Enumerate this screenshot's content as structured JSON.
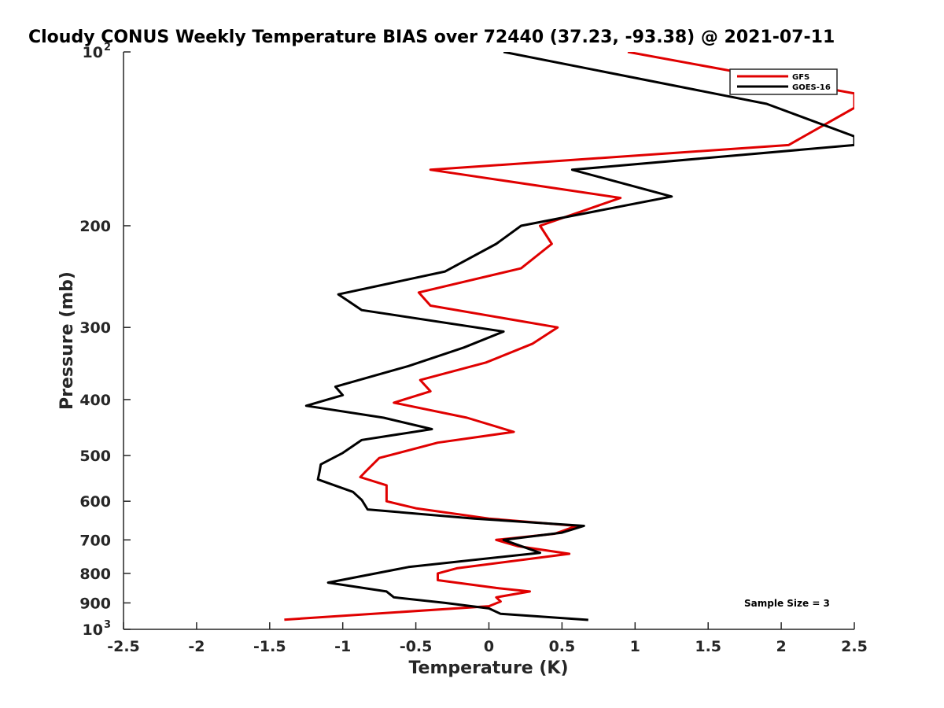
{
  "chart_data": {
    "type": "line",
    "title": "Cloudy CONUS Weekly Temperature BIAS over 72440 (37.23, -93.38) @ 2021-07-11",
    "xlabel": "Temperature (K)",
    "ylabel": "Pressure (mb)",
    "xlim": [
      -2.5,
      2.5
    ],
    "ylim": [
      100,
      1000
    ],
    "y_scale": "log",
    "y_reversed": true,
    "grid": false,
    "legend_position": "top-right",
    "xticks": [
      {
        "value": -2.5,
        "label": "-2.5"
      },
      {
        "value": -2,
        "label": "-2"
      },
      {
        "value": -1.5,
        "label": "-1.5"
      },
      {
        "value": -1,
        "label": "-1"
      },
      {
        "value": -0.5,
        "label": "-0.5"
      },
      {
        "value": 0,
        "label": "0"
      },
      {
        "value": 0.5,
        "label": "0.5"
      },
      {
        "value": 1,
        "label": "1"
      },
      {
        "value": 1.5,
        "label": "1.5"
      },
      {
        "value": 2,
        "label": "2"
      },
      {
        "value": 2.5,
        "label": "2.5"
      }
    ],
    "yticks": [
      {
        "value": 100,
        "label": "10",
        "exp": "2"
      },
      {
        "value": 200,
        "label": "200"
      },
      {
        "value": 300,
        "label": "300"
      },
      {
        "value": 400,
        "label": "400"
      },
      {
        "value": 500,
        "label": "500"
      },
      {
        "value": 600,
        "label": "600"
      },
      {
        "value": 700,
        "label": "700"
      },
      {
        "value": 800,
        "label": "800"
      },
      {
        "value": 900,
        "label": "900"
      },
      {
        "value": 1000,
        "label": "10",
        "exp": "3"
      }
    ],
    "annotation": "Sample Size = 3",
    "series": [
      {
        "name": "GFS",
        "color": "#e00000",
        "points": [
          {
            "x": 0.95,
            "y": 100
          },
          {
            "x": 2.5,
            "y": 118
          },
          {
            "x": 2.5,
            "y": 125
          },
          {
            "x": 2.05,
            "y": 145
          },
          {
            "x": -0.4,
            "y": 160
          },
          {
            "x": 0.9,
            "y": 179
          },
          {
            "x": 0.35,
            "y": 200
          },
          {
            "x": 0.43,
            "y": 215
          },
          {
            "x": 0.22,
            "y": 237
          },
          {
            "x": -0.48,
            "y": 261
          },
          {
            "x": -0.4,
            "y": 275
          },
          {
            "x": 0.47,
            "y": 300
          },
          {
            "x": 0.3,
            "y": 320
          },
          {
            "x": -0.02,
            "y": 345
          },
          {
            "x": -0.47,
            "y": 370
          },
          {
            "x": -0.4,
            "y": 387
          },
          {
            "x": -0.65,
            "y": 405
          },
          {
            "x": -0.15,
            "y": 430
          },
          {
            "x": 0.17,
            "y": 455
          },
          {
            "x": -0.35,
            "y": 475
          },
          {
            "x": -0.75,
            "y": 505
          },
          {
            "x": -0.85,
            "y": 535
          },
          {
            "x": -0.88,
            "y": 545
          },
          {
            "x": -0.7,
            "y": 563
          },
          {
            "x": -0.7,
            "y": 600
          },
          {
            "x": -0.5,
            "y": 617
          },
          {
            "x": 0,
            "y": 643
          },
          {
            "x": 0.6,
            "y": 662
          },
          {
            "x": 0.45,
            "y": 683
          },
          {
            "x": 0.05,
            "y": 700
          },
          {
            "x": 0.2,
            "y": 718
          },
          {
            "x": 0.55,
            "y": 740
          },
          {
            "x": -0.22,
            "y": 784
          },
          {
            "x": -0.35,
            "y": 800
          },
          {
            "x": -0.35,
            "y": 822
          },
          {
            "x": 0.05,
            "y": 848
          },
          {
            "x": 0.28,
            "y": 860
          },
          {
            "x": 0.05,
            "y": 880
          },
          {
            "x": 0.08,
            "y": 895
          },
          {
            "x": 0,
            "y": 912
          },
          {
            "x": -1.4,
            "y": 962
          }
        ]
      },
      {
        "name": "GOES-16",
        "color": "#000000",
        "points": [
          {
            "x": 0.1,
            "y": 100
          },
          {
            "x": 1.9,
            "y": 123
          },
          {
            "x": 2.5,
            "y": 140
          },
          {
            "x": 2.5,
            "y": 145
          },
          {
            "x": 0.57,
            "y": 160
          },
          {
            "x": 1.25,
            "y": 178
          },
          {
            "x": 0.22,
            "y": 200
          },
          {
            "x": 0.05,
            "y": 215
          },
          {
            "x": -0.3,
            "y": 240
          },
          {
            "x": -1.03,
            "y": 263
          },
          {
            "x": -0.87,
            "y": 280
          },
          {
            "x": 0.1,
            "y": 305
          },
          {
            "x": -0.17,
            "y": 325
          },
          {
            "x": -0.55,
            "y": 350
          },
          {
            "x": -1.05,
            "y": 380
          },
          {
            "x": -1,
            "y": 393
          },
          {
            "x": -1.25,
            "y": 410
          },
          {
            "x": -0.72,
            "y": 430
          },
          {
            "x": -0.39,
            "y": 450
          },
          {
            "x": -0.87,
            "y": 470
          },
          {
            "x": -1,
            "y": 495
          },
          {
            "x": -1.15,
            "y": 518
          },
          {
            "x": -1.16,
            "y": 535
          },
          {
            "x": -1.17,
            "y": 550
          },
          {
            "x": -0.93,
            "y": 578
          },
          {
            "x": -0.87,
            "y": 597
          },
          {
            "x": -0.83,
            "y": 620
          },
          {
            "x": -0.1,
            "y": 643
          },
          {
            "x": 0.65,
            "y": 662
          },
          {
            "x": 0.5,
            "y": 680
          },
          {
            "x": 0.1,
            "y": 700
          },
          {
            "x": 0.35,
            "y": 737
          },
          {
            "x": -0.55,
            "y": 780
          },
          {
            "x": -1.1,
            "y": 830
          },
          {
            "x": -0.7,
            "y": 860
          },
          {
            "x": -0.65,
            "y": 880
          },
          {
            "x": -0.3,
            "y": 900
          },
          {
            "x": 0,
            "y": 920
          },
          {
            "x": 0.08,
            "y": 940
          },
          {
            "x": 0.68,
            "y": 963
          }
        ]
      }
    ]
  }
}
